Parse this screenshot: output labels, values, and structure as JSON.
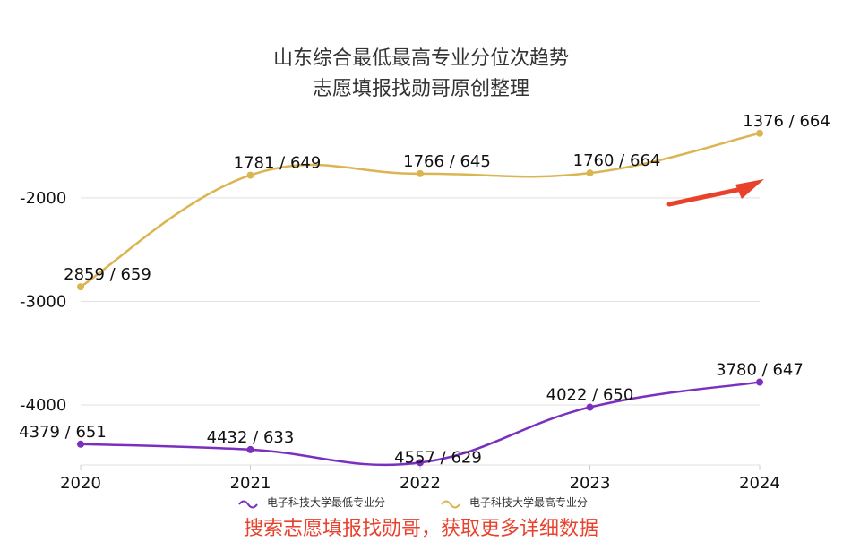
{
  "chart_data": {
    "type": "line",
    "title": "山东综合最低最高专业分位次趋势",
    "subtitle": "志愿填报找勋哥原创整理",
    "categories": [
      "2020",
      "2021",
      "2022",
      "2023",
      "2024"
    ],
    "y_axis": {
      "ticks": [
        "-2000",
        "-3000",
        "-4000"
      ],
      "tick_values": [
        -2000,
        -3000,
        -4000
      ],
      "range": [
        -4580,
        -1300
      ]
    },
    "grid": true,
    "legend_position": "bottom-center",
    "series": [
      {
        "name": "电子科技大学最低专业分",
        "color": "#7B2FBE",
        "values": [
          -4379,
          -4432,
          -4557,
          -4022,
          -3780
        ],
        "labels": [
          "4379 / 651",
          "4432 / 633",
          "4557 / 629",
          "4022 / 650",
          "3780 / 647"
        ]
      },
      {
        "name": "电子科技大学最高专业分",
        "color": "#DBB552",
        "values": [
          -2859,
          -1781,
          -1766,
          -1760,
          -1376
        ],
        "labels": [
          "2859 / 659",
          "1781 / 649",
          "1766 / 645",
          "1760 / 664",
          "1376 / 664"
        ]
      }
    ],
    "annotation": {
      "type": "arrow",
      "color": "#E8412C"
    }
  },
  "footer": {
    "text": "搜索志愿填报找勋哥，获取更多详细数据",
    "color": "#E8412C"
  }
}
